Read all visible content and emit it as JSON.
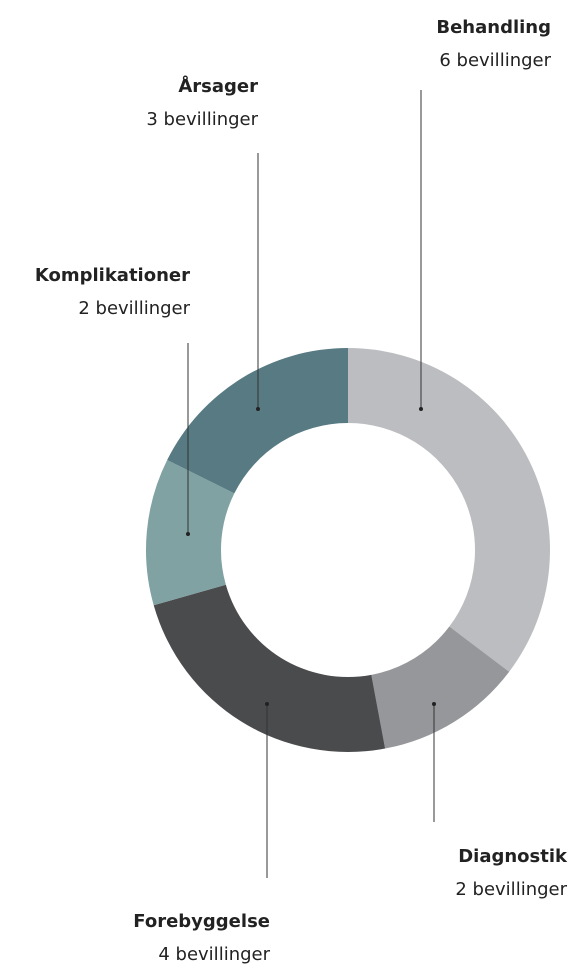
{
  "chart_data": {
    "type": "donut",
    "categories": [
      "Behandling",
      "Diagnostik",
      "Forebyggelse",
      "Komplikationer",
      "Årsager"
    ],
    "values": [
      6,
      2,
      4,
      2,
      3
    ],
    "value_labels": [
      "6 bevillinger",
      "2 bevillinger",
      "4 bevillinger",
      "2 bevillinger",
      "3 bevillinger"
    ],
    "colors": [
      "#bcbdc0",
      "#96979a",
      "#4a4b4d",
      "#80a2a3",
      "#577a83"
    ]
  }
}
